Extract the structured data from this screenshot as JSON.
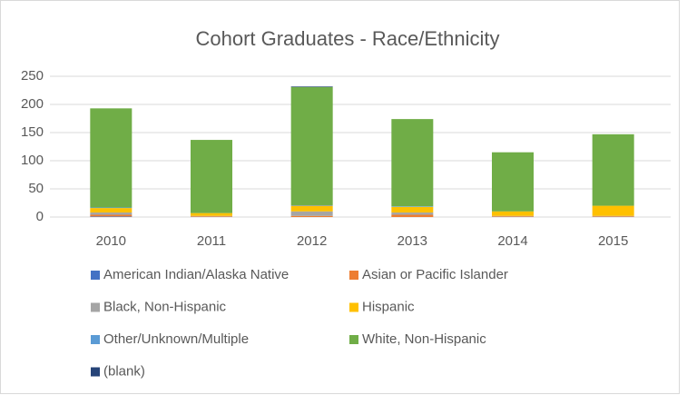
{
  "chart_data": {
    "type": "stacked_bar",
    "title": "Cohort Graduates - Race/Ethnicity",
    "categories": [
      "2010",
      "2011",
      "2012",
      "2013",
      "2014",
      "2015"
    ],
    "series": [
      {
        "name": "American Indian/Alaska Native",
        "color": "#4472c4",
        "values": [
          1,
          0,
          0,
          0,
          0,
          0
        ]
      },
      {
        "name": "Asian or Pacific Islander",
        "color": "#ed7d31",
        "values": [
          3,
          1,
          2,
          4,
          1,
          1
        ]
      },
      {
        "name": "Black, Non-Hispanic",
        "color": "#a5a5a5",
        "values": [
          4,
          1,
          8,
          4,
          1,
          1
        ]
      },
      {
        "name": "Hispanic",
        "color": "#ffc000",
        "values": [
          8,
          5,
          10,
          10,
          8,
          18
        ]
      },
      {
        "name": "Other/Unknown/Multiple",
        "color": "#5b9bd5",
        "values": [
          1,
          0,
          1,
          1,
          0,
          0
        ]
      },
      {
        "name": "White, Non-Hispanic",
        "color": "#70ad47",
        "values": [
          176,
          130,
          210,
          155,
          105,
          127
        ]
      },
      {
        "name": "(blank)",
        "color": "#264478",
        "values": [
          0,
          0,
          1,
          0,
          0,
          0
        ]
      }
    ],
    "ylim": [
      0,
      250
    ],
    "yticks": [
      0,
      50,
      100,
      150,
      200,
      250
    ],
    "grid": true,
    "legend": "bottom"
  }
}
